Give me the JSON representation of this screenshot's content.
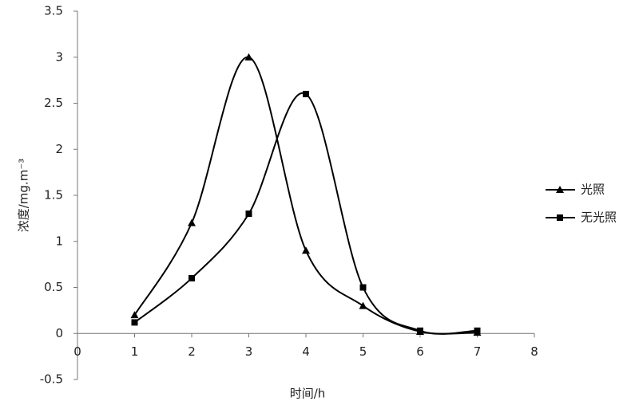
{
  "chart_data": {
    "type": "line",
    "smooth": true,
    "x_label": "时间/h",
    "y_label": "浓度/mg.m⁻³",
    "x": [
      1,
      2,
      3,
      4,
      5,
      6,
      7
    ],
    "series": [
      {
        "name": "光照",
        "color": "#000000",
        "marker": "triangle",
        "values": [
          0.2,
          1.2,
          3.0,
          0.9,
          0.3,
          0.02,
          0.01
        ]
      },
      {
        "name": "无光照",
        "color": "#000000",
        "marker": "square",
        "values": [
          0.12,
          0.6,
          1.3,
          2.6,
          0.5,
          0.03,
          0.03
        ]
      }
    ],
    "xlim": [
      0,
      8
    ],
    "xticks": [
      0,
      1,
      2,
      3,
      4,
      5,
      6,
      7,
      8
    ],
    "ylim": [
      -0.5,
      3.5
    ],
    "yticks": [
      -0.5,
      0,
      0.5,
      1,
      1.5,
      2,
      2.5,
      3,
      3.5
    ],
    "grid": false,
    "legend": "right"
  }
}
